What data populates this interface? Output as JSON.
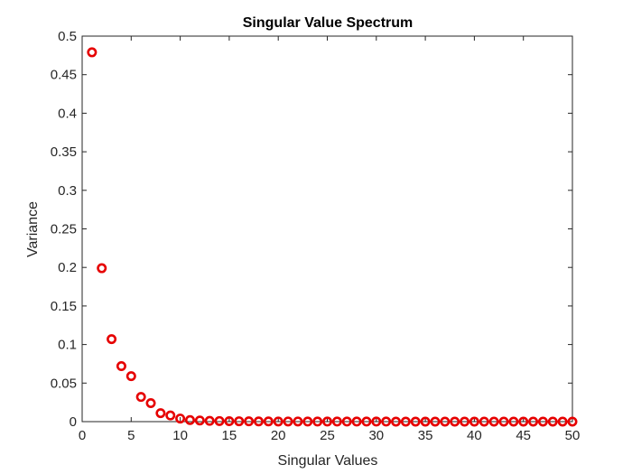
{
  "chart_data": {
    "type": "scatter",
    "title": "Singular Value Spectrum",
    "xlabel": "Singular Values",
    "ylabel": "Variance",
    "xlim": [
      0,
      50
    ],
    "ylim": [
      0,
      0.5
    ],
    "xticks": [
      0,
      5,
      10,
      15,
      20,
      25,
      30,
      35,
      40,
      45,
      50
    ],
    "xtick_labels": [
      "0",
      "5",
      "10",
      "15",
      "20",
      "25",
      "30",
      "35",
      "40",
      "45",
      "50"
    ],
    "yticks": [
      0,
      0.05,
      0.1,
      0.15,
      0.2,
      0.25,
      0.3,
      0.35,
      0.4,
      0.45,
      0.5
    ],
    "ytick_labels": [
      "0",
      "0.05",
      "0.1",
      "0.15",
      "0.2",
      "0.25",
      "0.3",
      "0.35",
      "0.4",
      "0.45",
      "0.5"
    ],
    "grid": false,
    "marker": "circle-open",
    "color": "#e60000",
    "x": [
      1,
      2,
      3,
      4,
      5,
      6,
      7,
      8,
      9,
      10,
      11,
      12,
      13,
      14,
      15,
      16,
      17,
      18,
      19,
      20,
      21,
      22,
      23,
      24,
      25,
      26,
      27,
      28,
      29,
      30,
      31,
      32,
      33,
      34,
      35,
      36,
      37,
      38,
      39,
      40,
      41,
      42,
      43,
      44,
      45,
      46,
      47,
      48,
      49,
      50
    ],
    "y": [
      0.479,
      0.199,
      0.107,
      0.072,
      0.059,
      0.032,
      0.024,
      0.011,
      0.008,
      0.004,
      0.002,
      0.0015,
      0.001,
      0.0008,
      0.0006,
      0.0005,
      0.0004,
      0.0003,
      0.0003,
      0.0002,
      0.0002,
      0.0002,
      0.0001,
      0.0001,
      0.0001,
      0.0001,
      0.0001,
      0.0001,
      0.0001,
      0.0001,
      0.0001,
      0,
      0,
      0,
      0,
      0,
      0,
      0,
      0,
      0,
      0,
      0,
      0,
      0,
      0,
      0,
      0,
      0,
      0,
      0
    ]
  }
}
